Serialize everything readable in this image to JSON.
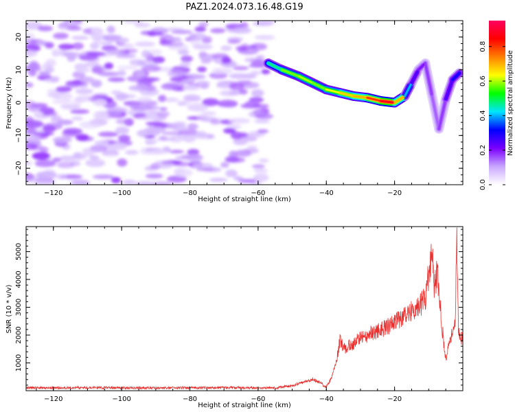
{
  "title": "PAZ1.2024.073.16.48.G19",
  "chart_data": [
    {
      "type": "heatmap",
      "xlabel": "Height of straight line (km)",
      "ylabel": "Frequency (Hz)",
      "xlim": [
        -128,
        0
      ],
      "ylim": [
        -25,
        25
      ],
      "xticks": [
        -120,
        -100,
        -80,
        -60,
        -40,
        -20
      ],
      "yticks": [
        -20,
        -10,
        0,
        10,
        20
      ],
      "colorbar": {
        "label": "Normalized spectral amplitude",
        "range": [
          0,
          0.95
        ],
        "ticks": [
          0.0,
          0.2,
          0.4,
          0.6,
          0.8
        ],
        "colors": [
          "#ffffff",
          "#c9a7ff",
          "#7a00ff",
          "#0000ff",
          "#00e5ff",
          "#00ff00",
          "#ffff00",
          "#ff8000",
          "#ff0000",
          "#ff0060"
        ]
      },
      "noise_region": {
        "x": [
          -128,
          -57
        ],
        "amplitude": 0.15
      },
      "ridge": {
        "x": [
          -57,
          -53,
          -48,
          -44,
          -40,
          -36,
          -32,
          -28,
          -24,
          -20,
          -17,
          -15,
          -13,
          -11,
          -9,
          -7,
          -5,
          -3,
          -1
        ],
        "y": [
          12,
          10,
          8,
          6,
          4,
          3,
          2,
          1.5,
          0.5,
          0,
          2,
          6,
          10,
          12,
          2,
          -8,
          1,
          7,
          9
        ],
        "amplitude": [
          0.4,
          0.55,
          0.6,
          0.6,
          0.55,
          0.7,
          0.65,
          0.75,
          0.85,
          0.9,
          0.5,
          0.3,
          0.2,
          0.2,
          0.15,
          0.15,
          0.2,
          0.3,
          0.3
        ]
      }
    },
    {
      "type": "line",
      "xlabel": "Height of straight line (km)",
      "ylabel": "SNR (10 * v/v)",
      "xlim": [
        -128,
        0
      ],
      "ylim": [
        0,
        5900
      ],
      "xticks": [
        -120,
        -100,
        -80,
        -60,
        -40,
        -20
      ],
      "yticks": [
        1000,
        2000,
        3000,
        4000,
        5000
      ],
      "color": "#e8302f",
      "series": [
        {
          "x": [
            -128,
            -110,
            -90,
            -70,
            -55,
            -50,
            -47,
            -44,
            -42,
            -40,
            -38.5,
            -37,
            -36,
            -35,
            -32,
            -30,
            -26,
            -22,
            -18,
            -15,
            -13,
            -11,
            -9.5,
            -9,
            -8.5,
            -7.5,
            -6,
            -5,
            -4,
            -3,
            -2.2,
            -1.8,
            -1.3,
            -0.5,
            0
          ],
          "y": [
            100,
            110,
            100,
            110,
            100,
            180,
            300,
            420,
            300,
            120,
            450,
            1100,
            1800,
            1500,
            1700,
            1900,
            2100,
            2300,
            2600,
            2900,
            3000,
            3300,
            4600,
            5400,
            3500,
            4300,
            2200,
            1100,
            1800,
            2100,
            2300,
            5850,
            2200,
            1800,
            2000
          ]
        }
      ]
    }
  ]
}
